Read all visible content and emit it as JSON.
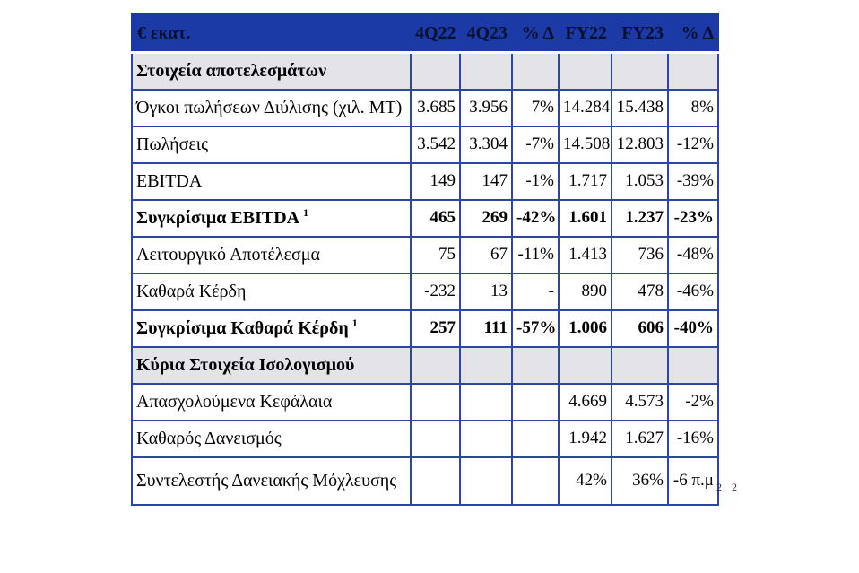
{
  "page": {
    "background": "#ffffff",
    "corner_note": "2 2"
  },
  "table": {
    "unit_label": "€ εκατ.",
    "columns": [
      "4Q22",
      "4Q23",
      "% Δ",
      "FY22",
      "FY23",
      "% Δ"
    ],
    "colors": {
      "header_bg": "#1B3AA6",
      "header_text": "#06102e",
      "grid_border": "#2D46A0",
      "section_bg": "#E4E3E8",
      "row_bg": "#FFFFFF",
      "text": "#000000"
    },
    "rows": [
      {
        "type": "section",
        "label": "Στοιχεία αποτελεσμάτων"
      },
      {
        "type": "data",
        "label": "Όγκοι πωλήσεων Διύλισης (χιλ. MT)",
        "values": [
          "3.685",
          "3.956",
          "7%",
          "14.284",
          "15.438",
          "8%"
        ]
      },
      {
        "type": "data",
        "label": "Πωλήσεις",
        "values": [
          "3.542",
          "3.304",
          "-7%",
          "14.508",
          "12.803",
          "-12%"
        ]
      },
      {
        "type": "data",
        "label": "EBITDA",
        "values": [
          "149",
          "147",
          "-1%",
          "1.717",
          "1.053",
          "-39%"
        ]
      },
      {
        "type": "data",
        "label": "Συγκρίσιμα EBITDA",
        "sup": "1",
        "bold": true,
        "values": [
          "465",
          "269",
          "-42%",
          "1.601",
          "1.237",
          "-23%"
        ]
      },
      {
        "type": "data",
        "label": "Λειτουργικό Αποτέλεσμα",
        "values": [
          "75",
          "67",
          "-11%",
          "1.413",
          "736",
          "-48%"
        ]
      },
      {
        "type": "data",
        "label": "Καθαρά Κέρδη",
        "values": [
          "-232",
          "13",
          "-",
          "890",
          "478",
          "-46%"
        ]
      },
      {
        "type": "data",
        "label": "Συγκρίσιμα Καθαρά Κέρδη",
        "sup": "1",
        "bold": true,
        "values": [
          "257",
          "111",
          "-57%",
          "1.006",
          "606",
          "-40%"
        ]
      },
      {
        "type": "section",
        "label": "Κύρια Στοιχεία Ισολογισμού"
      },
      {
        "type": "data",
        "label": "Απασχολούμενα Κεφάλαια",
        "values": [
          "",
          "",
          "",
          "4.669",
          "4.573",
          "-2%"
        ]
      },
      {
        "type": "data",
        "label": "Καθαρός Δανεισμός",
        "values": [
          "",
          "",
          "",
          "1.942",
          "1.627",
          "-16%"
        ]
      },
      {
        "type": "data",
        "label": "Συντελεστής Δανειακής Μόχλευσης",
        "values": [
          "",
          "",
          "",
          "42%",
          "36%",
          "-6 π.μ"
        ]
      }
    ]
  }
}
